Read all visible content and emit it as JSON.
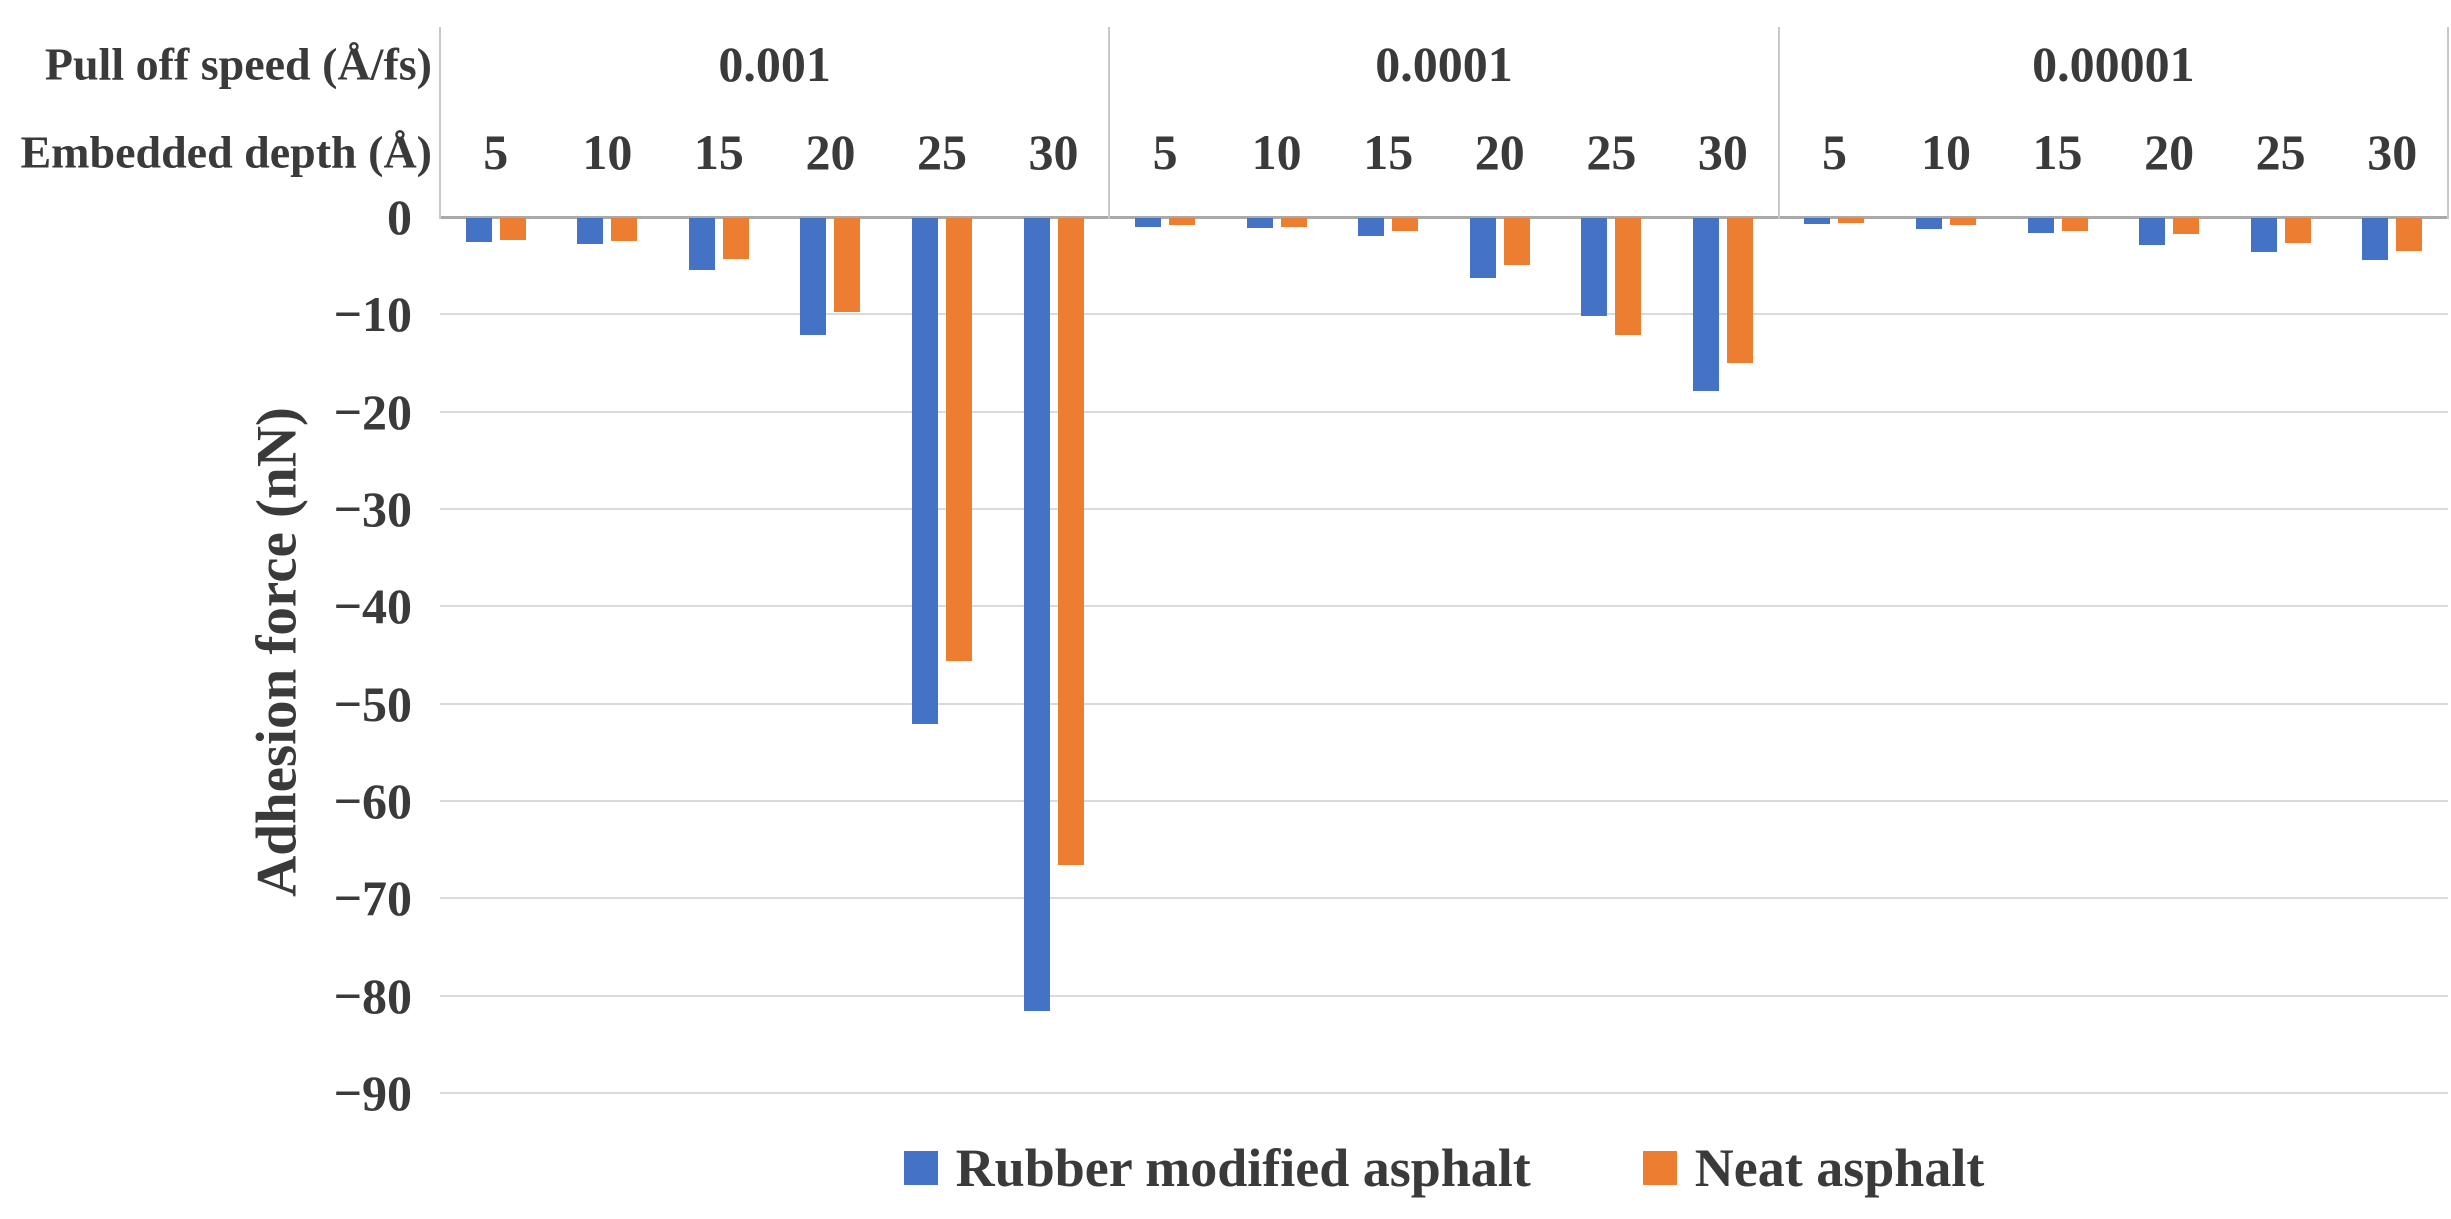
{
  "chart_data": {
    "type": "bar",
    "title": "",
    "ylabel": "Adhesion force (nN)",
    "row_headers": {
      "speed": "Pull off speed (Å/fs)",
      "depth": "Embedded depth (Å)"
    },
    "groups": [
      "0.001",
      "0.0001",
      "0.00001"
    ],
    "depth_labels": [
      "5",
      "10",
      "15",
      "20",
      "25",
      "30"
    ],
    "y_tick_labels": [
      "0",
      "−10",
      "−20",
      "−30",
      "−40",
      "−50",
      "−60",
      "−70",
      "−80",
      "−90"
    ],
    "ylim": [
      -90,
      0
    ],
    "grid": true,
    "legend_position": "bottom",
    "series": [
      {
        "name": "Rubber modified asphalt",
        "color": "#4472C4",
        "values": {
          "0.001": [
            -2.5,
            -2.7,
            -5.3,
            -12.0,
            -52.0,
            -81.5
          ],
          "0.0001": [
            -0.9,
            -1.0,
            -1.8,
            -6.2,
            -10.1,
            -17.8
          ],
          "0.00001": [
            -0.6,
            -1.1,
            -1.5,
            -2.8,
            -3.5,
            -4.3
          ]
        }
      },
      {
        "name": "Neat asphalt",
        "color": "#ED7D31",
        "values": {
          "0.001": [
            -2.3,
            -2.4,
            -4.2,
            -9.7,
            -45.5,
            -66.5
          ],
          "0.0001": [
            -0.7,
            -0.9,
            -1.3,
            -4.8,
            -12.0,
            -14.9
          ],
          "0.00001": [
            -0.5,
            -0.7,
            -1.3,
            -1.6,
            -2.6,
            -3.4
          ]
        }
      }
    ]
  }
}
